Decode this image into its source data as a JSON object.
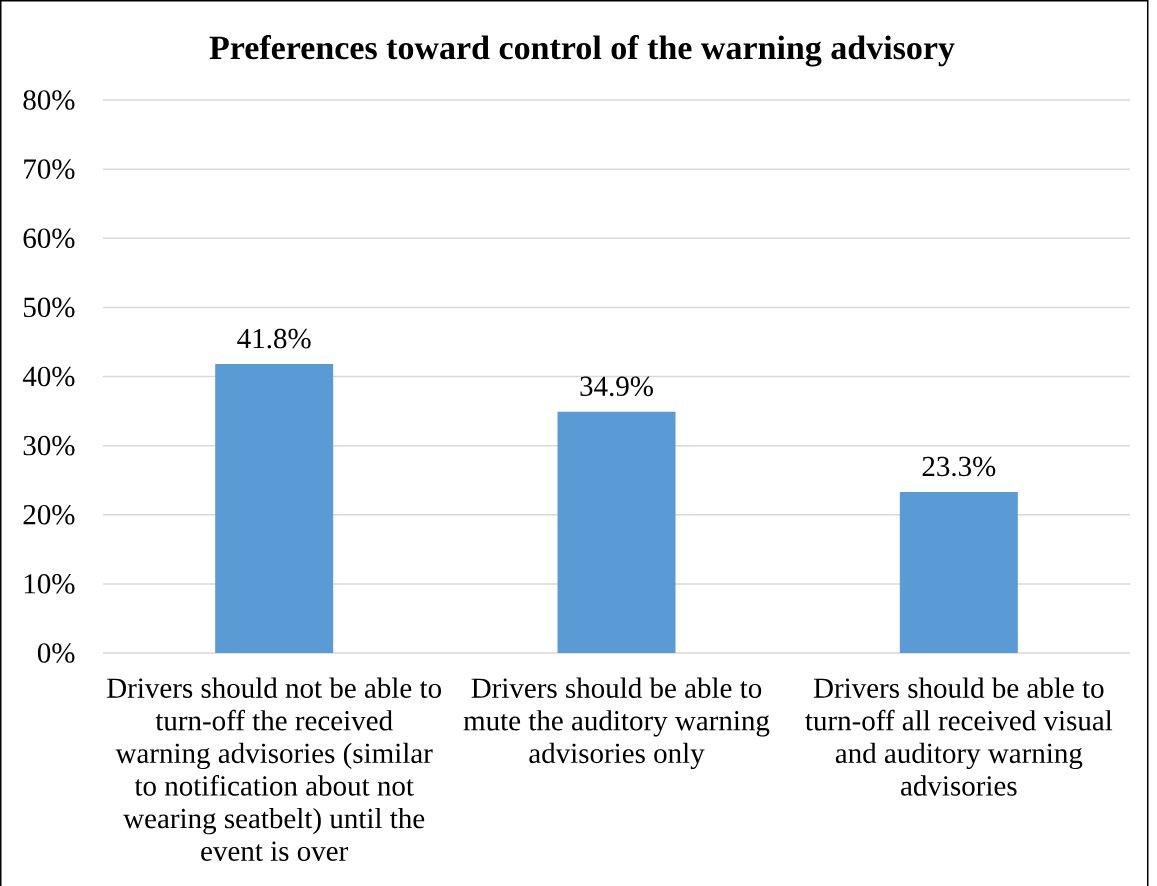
{
  "chart_data": {
    "type": "bar",
    "title": "Preferences toward control of the warning advisory",
    "categories": [
      "Drivers should not be able to turn-off the received warning advisories (similar to notification about not wearing seatbelt) until the event is over",
      "Drivers should be able to mute the auditory warning advisories only",
      "Drivers should be able to turn-off all received visual and auditory warning advisories"
    ],
    "values": [
      41.8,
      34.9,
      23.3
    ],
    "value_labels": [
      "41.8%",
      "34.9%",
      "23.3%"
    ],
    "color": "#5b9bd5",
    "ylim": [
      0,
      80
    ],
    "yticks": [
      {
        "value": 0,
        "label": "0%"
      },
      {
        "value": 10,
        "label": "10%"
      },
      {
        "value": 20,
        "label": "20%"
      },
      {
        "value": 30,
        "label": "30%"
      },
      {
        "value": 40,
        "label": "40%"
      },
      {
        "value": 50,
        "label": "50%"
      },
      {
        "value": 60,
        "label": "60%"
      },
      {
        "value": 70,
        "label": "70%"
      },
      {
        "value": 80,
        "label": "80%"
      }
    ],
    "grid": "y"
  }
}
